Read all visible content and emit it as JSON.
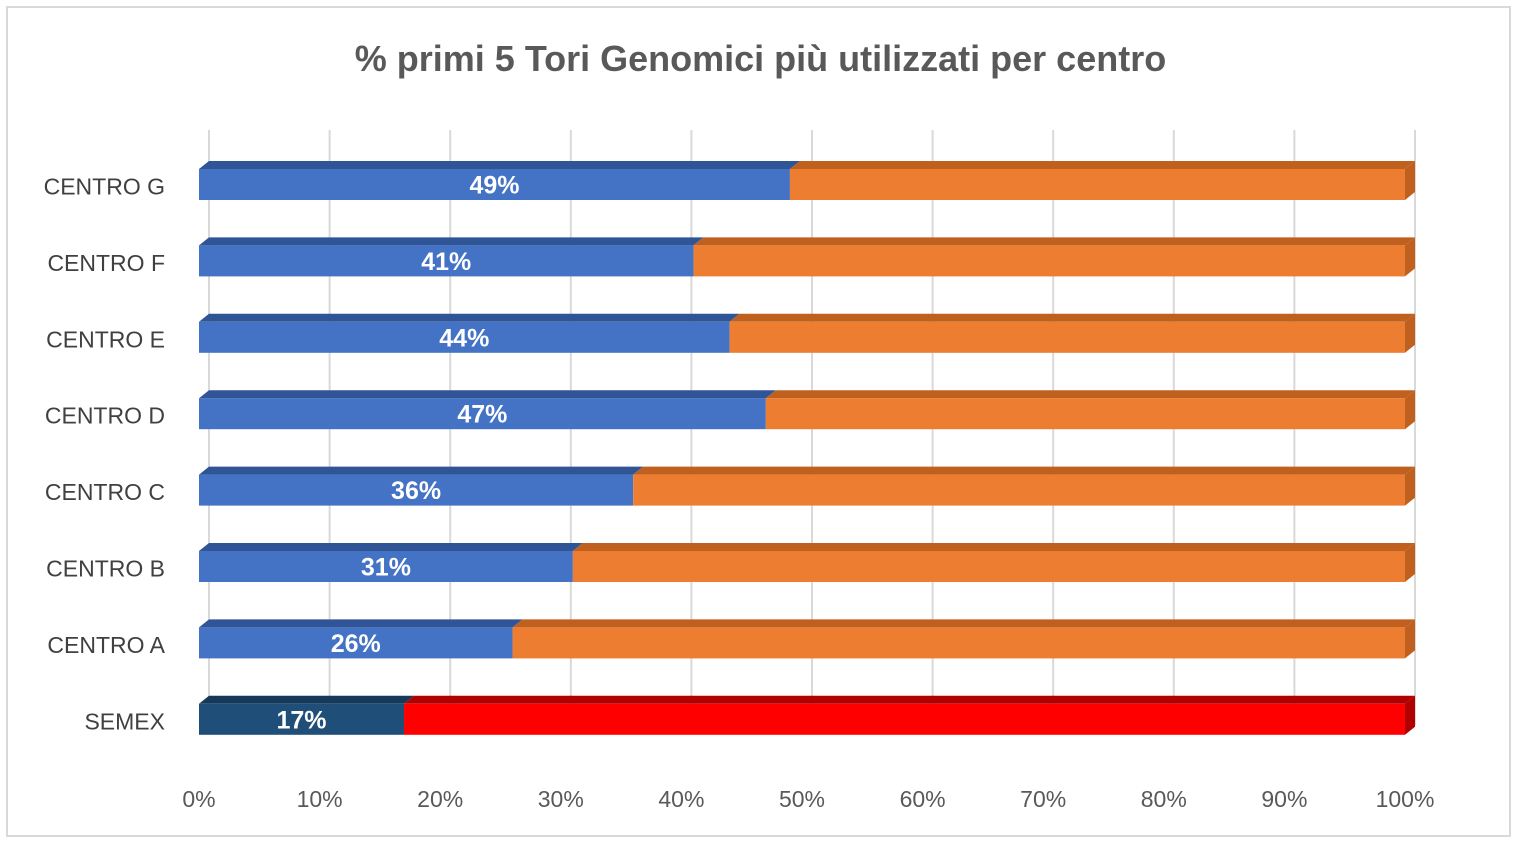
{
  "chart_data": {
    "type": "bar",
    "orientation": "horizontal",
    "stacked": "percent",
    "title": "% primi 5 Tori Genomici più utilizzati per centro",
    "categories": [
      "CENTRO G",
      "CENTRO F",
      "CENTRO E",
      "CENTRO D",
      "CENTRO C",
      "CENTRO B",
      "CENTRO A",
      "SEMEX"
    ],
    "series": [
      {
        "values": [
          49,
          41,
          44,
          47,
          36,
          31,
          26,
          17
        ],
        "data_labels": [
          "49%",
          "41%",
          "44%",
          "47%",
          "36%",
          "31%",
          "26%",
          "17%"
        ]
      },
      {
        "values": [
          51,
          59,
          56,
          53,
          64,
          69,
          74,
          83
        ]
      }
    ],
    "colors": {
      "primary": "#4472c4",
      "primary_top": "#2f5597",
      "remainder": "#ed7d31",
      "remainder_side": "#c0601f",
      "highlight_primary": "#1f4e79",
      "highlight_top": "#16395a",
      "highlight_remainder": "#ff0000",
      "highlight_side": "#b00000",
      "grid": "#d9d9d9"
    },
    "highlight_category": "SEMEX",
    "x_axis": {
      "ticks": [
        "0%",
        "10%",
        "20%",
        "30%",
        "40%",
        "50%",
        "60%",
        "70%",
        "80%",
        "90%",
        "100%"
      ],
      "xlim": [
        0,
        100
      ]
    },
    "grid": true,
    "legend": "none"
  }
}
